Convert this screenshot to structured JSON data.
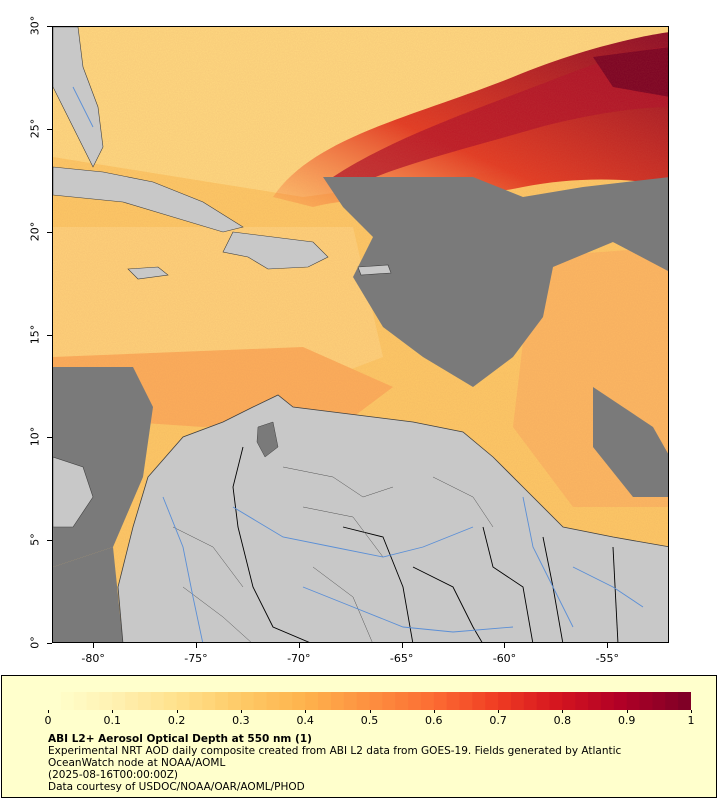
{
  "map": {
    "title": "ABI L2+ Aerosol Optical Depth at 550 nm (1)",
    "lon_ticks": [
      "-80°",
      "-75°",
      "-70°",
      "-65°",
      "-60°",
      "-55°"
    ],
    "lat_ticks": [
      "30°",
      "25°",
      "20°",
      "15°",
      "10°",
      "5°",
      "0°"
    ],
    "extent": {
      "lon_min": -82,
      "lon_max": -52,
      "lat_min": 0,
      "lat_max": 30
    },
    "colors": {
      "land": "#c8c8c8",
      "no_data": "#7a7a7a",
      "coast": "#404040",
      "river": "#5b8fd6",
      "border": "#000000"
    }
  },
  "colorbar": {
    "labels": [
      "0",
      "0.1",
      "0.2",
      "0.3",
      "0.4",
      "0.5",
      "0.6",
      "0.7",
      "0.8",
      "0.9",
      "1"
    ],
    "colors": [
      "#ffffcc",
      "#fff0b0",
      "#ffe08a",
      "#fec966",
      "#feb24c",
      "#fd9040",
      "#fc6d33",
      "#f03d23",
      "#d4141f",
      "#b00026",
      "#800026"
    ]
  },
  "legend": {
    "description": [
      "Experimental NRT AOD daily composite created from ABI L2 data from GOES-19. Fields generated by Atlantic",
      "OceanWatch node at NOAA/AOML",
      "(2025-08-16T00:00:00Z)",
      "Data courtesy of USDOC/NOAA/OAR/AOML/PHOD"
    ]
  }
}
